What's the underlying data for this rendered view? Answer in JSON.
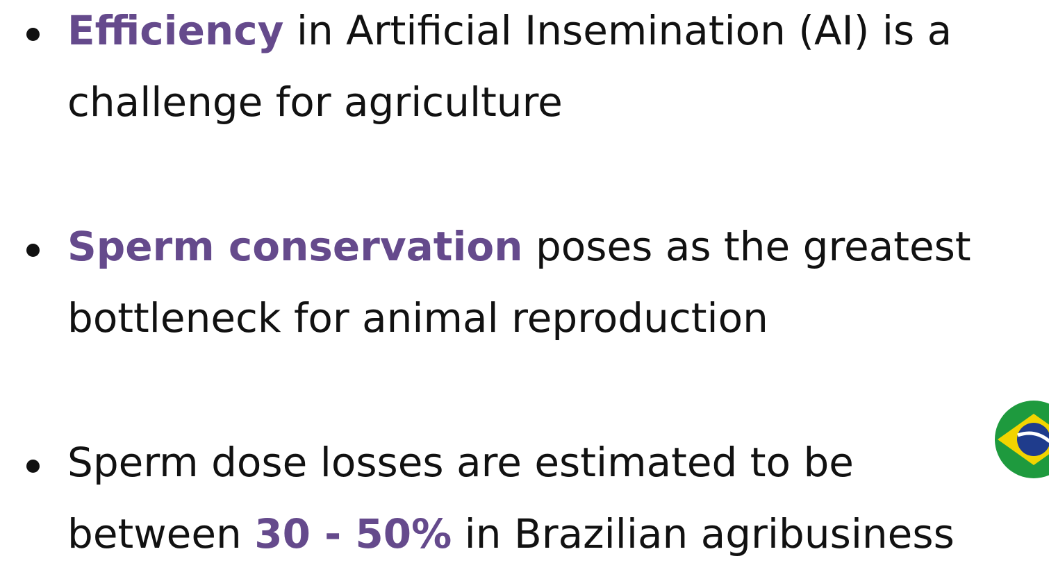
{
  "bullets": [
    {
      "lines": [
        [
          {
            "text": "Efficiency",
            "highlight": true
          },
          {
            "text": " in Artificial Insemination (AI) is a",
            "highlight": false
          }
        ],
        [
          {
            "text": "challenge for agriculture",
            "highlight": false
          }
        ]
      ]
    },
    {
      "lines": [
        [
          {
            "text": "Sperm conservation",
            "highlight": true
          },
          {
            "text": " poses as the greatest",
            "highlight": false
          }
        ],
        [
          {
            "text": "bottleneck for animal reproduction",
            "highlight": false
          }
        ]
      ]
    },
    {
      "lines": [
        [
          {
            "text": "Sperm dose losses are estimated to be",
            "highlight": false
          }
        ],
        [
          {
            "text": "between ",
            "highlight": false
          },
          {
            "text": "30 - 50%",
            "highlight": true
          },
          {
            "text": " in Brazilian agribusiness",
            "highlight": false
          }
        ]
      ]
    }
  ]
}
